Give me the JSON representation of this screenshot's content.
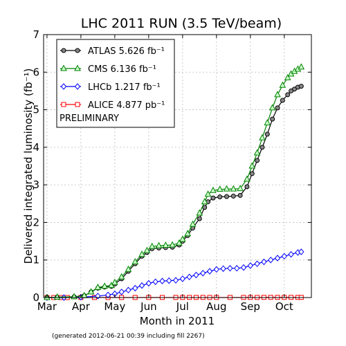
{
  "chart_data": {
    "type": "line",
    "title": "LHC 2011 RUN (3.5 TeV/beam)",
    "xlabel": "Month in 2011",
    "ylabel": "Delivered integrated luminosity (fb⁻¹)",
    "footnote": "(generated 2012-06-21 00:39 including fill 2267)",
    "legend_note": "PRELIMINARY",
    "legend_position": "top-left",
    "grid": true,
    "x_ticks": [
      "Mar",
      "Apr",
      "May",
      "Jun",
      "Jul",
      "Aug",
      "Sep",
      "Oct"
    ],
    "x_range_months": [
      2.9,
      10.8
    ],
    "ylim": [
      0,
      7
    ],
    "y_ticks": [
      0,
      1,
      2,
      3,
      4,
      5,
      6,
      7
    ],
    "series": [
      {
        "name": "ATLAS 5.626 fb⁻¹",
        "color": "#000000",
        "marker": "circle",
        "marker_fill": "#888888",
        "x": [
          3.0,
          3.3,
          3.8,
          4.1,
          4.3,
          4.5,
          4.7,
          4.9,
          5.0,
          5.2,
          5.4,
          5.6,
          5.8,
          5.95,
          6.1,
          6.3,
          6.5,
          6.7,
          6.9,
          7.0,
          7.15,
          7.3,
          7.5,
          7.65,
          7.75,
          7.9,
          8.1,
          8.3,
          8.5,
          8.7,
          8.9,
          9.05,
          9.2,
          9.35,
          9.5,
          9.65,
          9.8,
          9.95,
          10.1,
          10.2,
          10.3,
          10.4,
          10.5
        ],
        "y": [
          0.0,
          0.01,
          0.02,
          0.05,
          0.15,
          0.25,
          0.28,
          0.3,
          0.36,
          0.5,
          0.7,
          0.9,
          1.1,
          1.2,
          1.3,
          1.32,
          1.33,
          1.34,
          1.4,
          1.5,
          1.65,
          1.85,
          2.1,
          2.4,
          2.55,
          2.65,
          2.68,
          2.69,
          2.7,
          2.72,
          2.95,
          3.3,
          3.65,
          4.0,
          4.35,
          4.75,
          5.05,
          5.25,
          5.4,
          5.5,
          5.55,
          5.6,
          5.626
        ]
      },
      {
        "name": "CMS 6.136 fb⁻¹",
        "color": "#008000",
        "marker": "triangle",
        "marker_fill": "#ccffcc",
        "x": [
          3.0,
          3.3,
          3.8,
          4.1,
          4.3,
          4.5,
          4.7,
          4.9,
          5.0,
          5.2,
          5.4,
          5.6,
          5.8,
          5.95,
          6.1,
          6.3,
          6.5,
          6.7,
          6.9,
          7.0,
          7.15,
          7.3,
          7.5,
          7.65,
          7.75,
          7.9,
          8.1,
          8.3,
          8.5,
          8.7,
          8.9,
          9.05,
          9.2,
          9.35,
          9.5,
          9.65,
          9.8,
          9.95,
          10.1,
          10.2,
          10.3,
          10.4,
          10.5
        ],
        "y": [
          0.0,
          0.01,
          0.02,
          0.05,
          0.15,
          0.27,
          0.3,
          0.32,
          0.4,
          0.55,
          0.75,
          0.95,
          1.15,
          1.25,
          1.36,
          1.38,
          1.39,
          1.4,
          1.45,
          1.55,
          1.7,
          1.95,
          2.25,
          2.55,
          2.75,
          2.85,
          2.88,
          2.89,
          2.89,
          2.9,
          3.15,
          3.5,
          3.85,
          4.25,
          4.65,
          5.05,
          5.4,
          5.65,
          5.85,
          5.95,
          6.02,
          6.08,
          6.136
        ]
      },
      {
        "name": "LHCb 1.217 fb⁻¹",
        "color": "#0000ff",
        "marker": "diamond",
        "marker_fill": "#ffffff",
        "x": [
          3.0,
          3.5,
          4.0,
          4.5,
          4.8,
          5.0,
          5.2,
          5.4,
          5.6,
          5.8,
          6.0,
          6.2,
          6.4,
          6.6,
          6.8,
          7.0,
          7.2,
          7.4,
          7.6,
          7.8,
          8.0,
          8.2,
          8.4,
          8.6,
          8.8,
          9.0,
          9.2,
          9.4,
          9.6,
          9.8,
          10.0,
          10.2,
          10.4,
          10.5
        ],
        "y": [
          0.0,
          0.0,
          0.01,
          0.04,
          0.07,
          0.1,
          0.15,
          0.2,
          0.25,
          0.32,
          0.38,
          0.42,
          0.44,
          0.45,
          0.46,
          0.5,
          0.55,
          0.6,
          0.65,
          0.7,
          0.75,
          0.77,
          0.78,
          0.78,
          0.8,
          0.85,
          0.9,
          0.95,
          1.0,
          1.05,
          1.1,
          1.15,
          1.2,
          1.217
        ]
      },
      {
        "name": "ALICE 4.877 pb⁻¹",
        "color": "#ff0000",
        "marker": "square",
        "marker_fill": "#ffffff",
        "x": [
          3.0,
          3.2,
          3.4,
          3.6,
          4.0,
          4.4,
          4.8,
          5.2,
          5.6,
          6.0,
          6.4,
          6.8,
          7.0,
          7.2,
          7.4,
          7.6,
          7.8,
          8.0,
          8.4,
          8.8,
          9.0,
          9.2,
          9.4,
          9.6,
          9.8,
          10.0,
          10.2,
          10.4,
          10.5
        ],
        "y": [
          0.0,
          0.001,
          0.001,
          0.001,
          0.002,
          0.002,
          0.002,
          0.002,
          0.003,
          0.003,
          0.003,
          0.003,
          0.003,
          0.004,
          0.004,
          0.004,
          0.004,
          0.004,
          0.004,
          0.004,
          0.004,
          0.004,
          0.005,
          0.005,
          0.005,
          0.005,
          0.005,
          0.005,
          0.005
        ]
      }
    ]
  }
}
